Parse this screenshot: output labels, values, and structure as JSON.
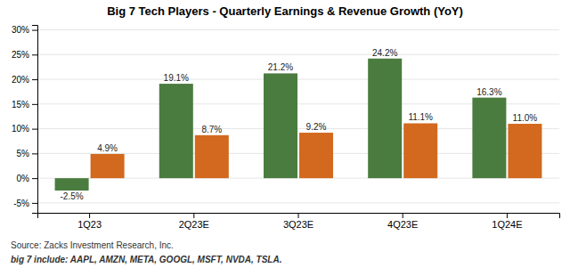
{
  "chart_data": {
    "type": "bar",
    "title": "Big 7 Tech Players - Quarterly Earnings & Revenue Growth (YoY)",
    "categories": [
      "1Q23",
      "2Q23E",
      "3Q23E",
      "4Q23E",
      "1Q24E"
    ],
    "series": [
      {
        "color": "#4a7c3f",
        "values": [
          -2.5,
          19.1,
          21.2,
          24.2,
          16.3
        ],
        "value_labels": [
          "-2.5%",
          "19.1%",
          "21.2%",
          "24.2%",
          "16.3%"
        ]
      },
      {
        "color": "#d2691e",
        "values": [
          4.9,
          8.7,
          9.2,
          11.1,
          11.0
        ],
        "value_labels": [
          "4.9%",
          "8.7%",
          "9.2%",
          "11.1%",
          "11.0%"
        ]
      }
    ],
    "ylim": [
      -7,
      31
    ],
    "yticks": [
      {
        "value": -5,
        "label": "-5%"
      },
      {
        "value": 0,
        "label": "0%"
      },
      {
        "value": 5,
        "label": "5%"
      },
      {
        "value": 10,
        "label": "10%"
      },
      {
        "value": 15,
        "label": "15%"
      },
      {
        "value": 20,
        "label": "20%"
      },
      {
        "value": 25,
        "label": "25%"
      },
      {
        "value": 30,
        "label": "30%"
      }
    ],
    "grid": true,
    "data_labels": true,
    "annotations": [
      "Source: Zacks Investment Research, Inc.",
      "big 7 include: AAPL, AMZN, META, GOOGL, MSFT, NVDA, TSLA."
    ]
  }
}
